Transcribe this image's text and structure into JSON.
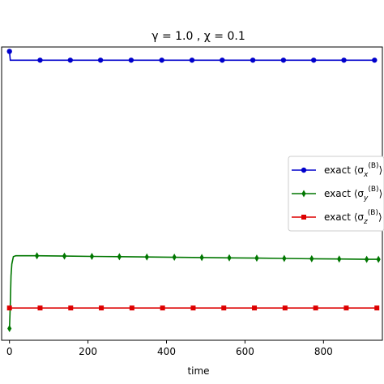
{
  "chart_data": {
    "type": "line",
    "title": "γ = 1.0 , χ = 0.1",
    "xlabel": "time",
    "ylabel": "",
    "xlim": [
      -20,
      950
    ],
    "ylim": [
      0,
      1
    ],
    "x_ticks": [
      0,
      200,
      400,
      600,
      800
    ],
    "x_tick_labels": [
      "0",
      "200",
      "400",
      "600",
      "800"
    ],
    "grid": false,
    "legend_position": "center-right",
    "series": [
      {
        "name": "exact ⟨σx(B)⟩",
        "label_base": "exact ⟨σ",
        "label_sub": "x",
        "label_sup": "(B)",
        "label_end": "⟩",
        "color": "#0000cc",
        "marker": "circle",
        "x": [
          0,
          2,
          10,
          78,
          155,
          232,
          310,
          388,
          465,
          542,
          620,
          698,
          775,
          852,
          930
        ],
        "y": [
          0.985,
          0.955,
          0.955,
          0.955,
          0.955,
          0.955,
          0.955,
          0.955,
          0.955,
          0.955,
          0.955,
          0.955,
          0.955,
          0.955,
          0.955
        ]
      },
      {
        "name": "exact ⟨σy(B)⟩",
        "label_base": "exact ⟨σ",
        "label_sub": "y",
        "label_sup": "(B)",
        "label_end": "⟩",
        "color": "#007700",
        "marker": "diamond",
        "x": [
          0,
          2,
          4,
          6,
          10,
          16,
          25,
          70,
          140,
          210,
          280,
          350,
          420,
          490,
          560,
          630,
          700,
          770,
          840,
          910,
          940
        ],
        "y": [
          0.04,
          0.12,
          0.22,
          0.26,
          0.285,
          0.288,
          0.288,
          0.288,
          0.287,
          0.286,
          0.285,
          0.284,
          0.283,
          0.282,
          0.281,
          0.28,
          0.279,
          0.278,
          0.277,
          0.276,
          0.276
        ]
      },
      {
        "name": "exact ⟨σz(B)⟩",
        "label_base": "exact ⟨σ",
        "label_sub": "z",
        "label_sup": "(B)",
        "label_end": "⟩",
        "color": "#dd0000",
        "marker": "square",
        "x": [
          0,
          78,
          156,
          234,
          312,
          390,
          468,
          546,
          624,
          702,
          780,
          858,
          936
        ],
        "y": [
          0.11,
          0.11,
          0.11,
          0.11,
          0.11,
          0.11,
          0.11,
          0.11,
          0.11,
          0.11,
          0.11,
          0.11,
          0.11
        ]
      }
    ]
  }
}
